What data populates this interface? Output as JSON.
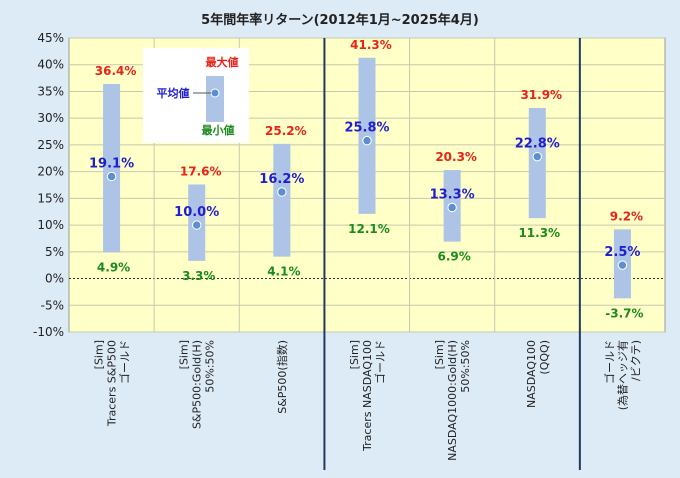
{
  "chart_data": {
    "type": "bar",
    "title": "5年間年率リターン(2012年1月~2025年4月)",
    "ylim": [
      -10,
      45
    ],
    "ytick_step": 5,
    "ytick_suffix": "%",
    "grid": true,
    "categories": [
      [
        "[Sim]",
        "Tracers S&P500",
        "ゴールド"
      ],
      [
        "[Sim]",
        "S&P500:Gold(H)",
        "50%:50%"
      ],
      [
        "S&P500(指数)"
      ],
      [
        "[Sim]",
        "Tracers NASDAQ100",
        "ゴールド"
      ],
      [
        "[Sim]",
        "NASDAQ1000:Gold(H)",
        "50%:50%"
      ],
      [
        "NASDAQ100",
        "(QQQ)"
      ],
      [
        "ゴールド",
        "(為替ヘッジ有",
        "/ビクテ)"
      ]
    ],
    "series": [
      {
        "name": "最大値",
        "values": [
          36.4,
          17.6,
          25.2,
          41.3,
          20.3,
          31.9,
          9.2
        ],
        "color": "#e8231a"
      },
      {
        "name": "平均値",
        "values": [
          19.1,
          10.0,
          16.2,
          25.8,
          13.3,
          22.8,
          2.5
        ],
        "color": "#1f1fd0"
      },
      {
        "name": "最小値",
        "values": [
          4.9,
          3.3,
          4.1,
          12.1,
          6.9,
          11.3,
          -3.7
        ],
        "color": "#1c8a1c"
      }
    ],
    "labels": {
      "max": [
        "36.4%",
        "17.6%",
        "25.2%",
        "41.3%",
        "20.3%",
        "31.9%",
        "9.2%"
      ],
      "avg": [
        "19.1%",
        "10.0%",
        "16.2%",
        "25.8%",
        "13.3%",
        "22.8%",
        "2.5%"
      ],
      "min": [
        "4.9%",
        "3.3%",
        "4.1%",
        "12.1%",
        "6.9%",
        "11.3%",
        "-3.7%"
      ]
    },
    "group_separators_after": [
      2,
      5
    ],
    "legend": {
      "placement": "top-left",
      "max_label": "最大値",
      "avg_label": "平均値",
      "min_label": "最小値"
    },
    "colors": {
      "plot_bg": "#ffffc8",
      "page_bg": "#ddebf7",
      "range_bar": "#aec4e6",
      "avg_dot": "#5b8fd0",
      "separator": "#1f3b5c",
      "zero_line": "#333333"
    }
  }
}
